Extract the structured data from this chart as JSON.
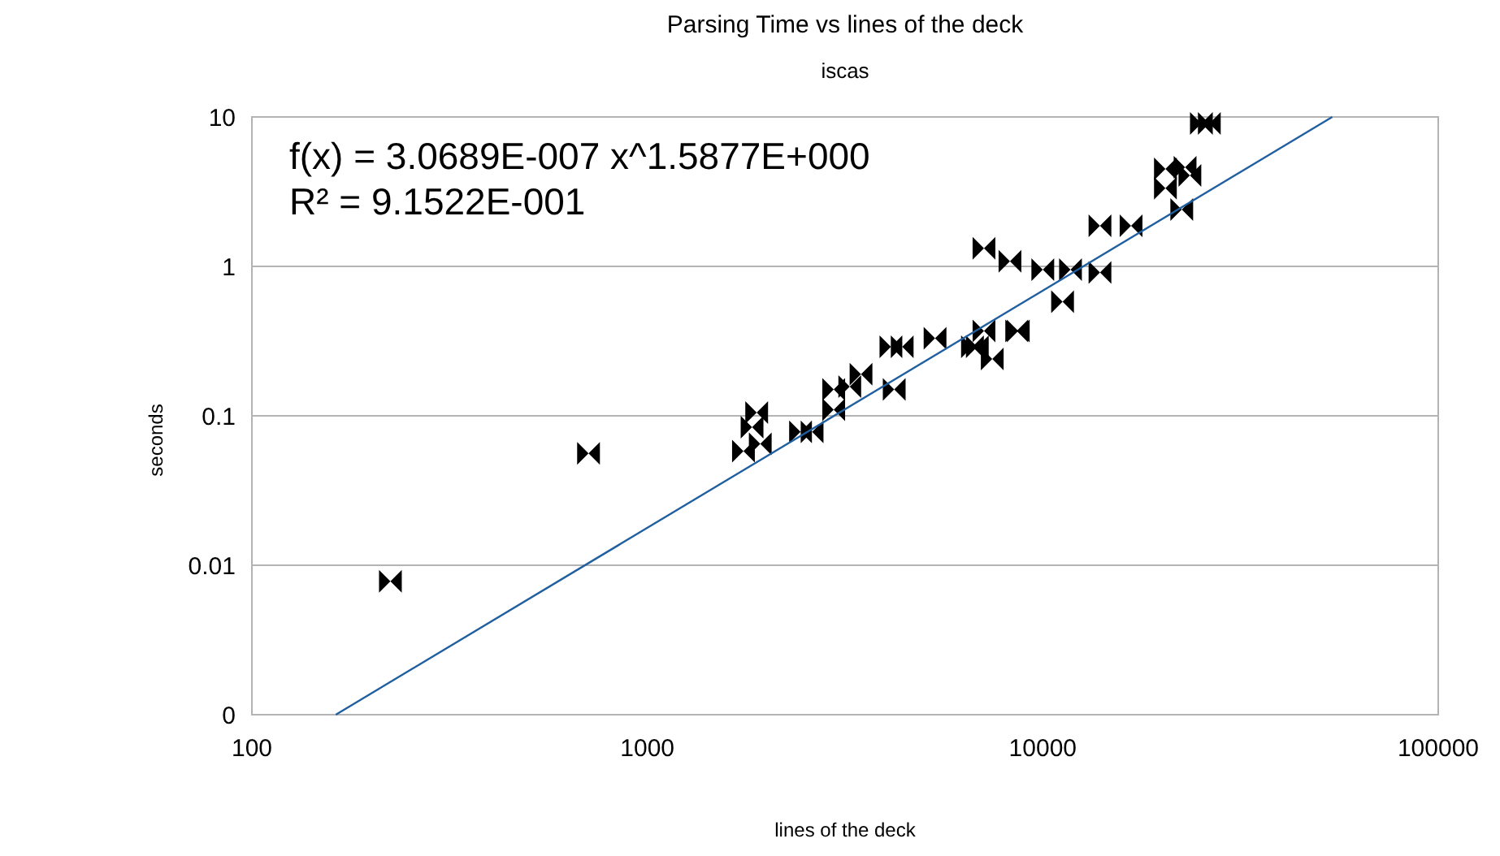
{
  "chart_data": {
    "type": "scatter",
    "title": "Parsing Time vs lines of the deck",
    "subtitle": "iscas",
    "xlabel": "lines of the deck",
    "ylabel": "seconds",
    "annotations": [
      "f(x) = 3.0689E-007 x^1.5877E+000",
      "R² = 9.1522E-001"
    ],
    "log": "xy",
    "grid": "y",
    "marker": "triangle",
    "xlim": [
      100,
      100000
    ],
    "xticks": [
      100,
      1000,
      10000,
      100000
    ],
    "ylim": [
      0.001,
      10
    ],
    "yticks": [
      {
        "value": 0.001,
        "label": "0"
      },
      0.01,
      0.1,
      1,
      10
    ],
    "series": [
      {
        "type": "scatter",
        "color": "#000000",
        "x": [
          224,
          710,
          1750,
          1840,
          1890,
          1930,
          2440,
          2610,
          2960,
          2960,
          3250,
          3470,
          4210,
          4130,
          4410,
          5340,
          6640,
          6830,
          7450,
          7100,
          8590,
          8670,
          7100,
          8260,
          10000,
          11750,
          13950,
          11220,
          13950,
          16720,
          20420,
          22900,
          23550,
          20420,
          22460,
          25180,
          26370
        ],
        "values": [
          0.0078,
          0.056,
          0.058,
          0.084,
          0.105,
          0.065,
          0.078,
          0.078,
          0.11,
          0.15,
          0.157,
          0.19,
          0.15,
          0.29,
          0.29,
          0.33,
          0.29,
          0.29,
          0.24,
          0.37,
          0.37,
          0.37,
          1.32,
          1.08,
          0.95,
          0.95,
          0.91,
          0.58,
          1.87,
          1.87,
          4.49,
          4.6,
          4.06,
          3.33,
          2.4,
          9.05,
          9.05
        ]
      },
      {
        "type": "line",
        "marker": "none",
        "color": "#1f5fa0",
        "x": [
          163,
          53950
        ],
        "values": [
          0.001,
          10
        ]
      }
    ]
  }
}
